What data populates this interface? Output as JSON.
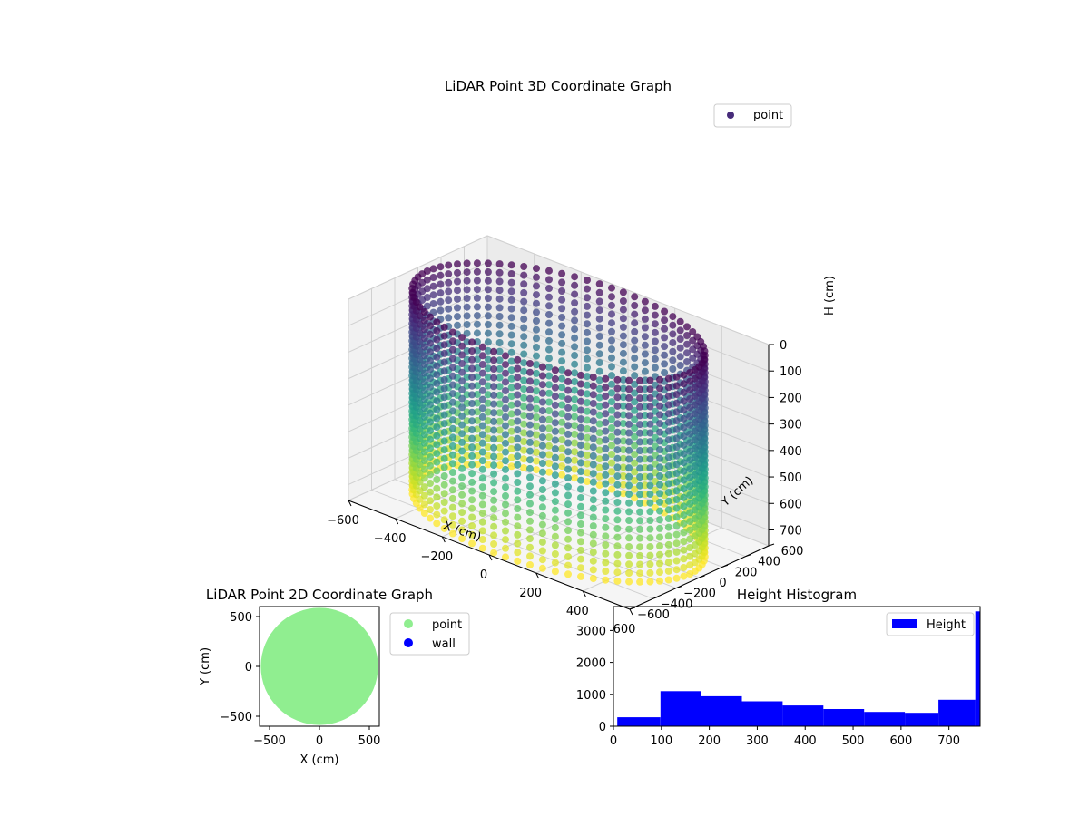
{
  "chart_data": [
    {
      "type": "scatter3d",
      "title": "LiDAR Point 3D Coordinate Graph",
      "xlabel": "X (cm)",
      "ylabel": "Y (cm)",
      "zlabel": "H (cm)",
      "xlim": [
        -600,
        600
      ],
      "ylim": [
        -600,
        600
      ],
      "zlim": [
        0,
        760
      ],
      "z_inverted": true,
      "x_ticks": [
        "−600",
        "−400",
        "−200",
        "0",
        "200",
        "400",
        "600"
      ],
      "y_ticks": [
        "−600",
        "−400",
        "−200",
        "0",
        "200",
        "400",
        "600"
      ],
      "z_ticks": [
        "0",
        "100",
        "200",
        "300",
        "400",
        "500",
        "600",
        "700"
      ],
      "colormap": "viridis",
      "grid": true,
      "legend": {
        "placement": "top-right",
        "entries": [
          {
            "name": "point",
            "color": "#472c7a"
          }
        ]
      },
      "series": [
        {
          "name": "point",
          "shape": "cylinder",
          "radius": 560,
          "height_range": [
            0,
            760
          ],
          "angular_columns": 72,
          "height_levels": 24
        }
      ]
    },
    {
      "type": "scatter",
      "title": "LiDAR Point 2D Coordinate Graph",
      "xlabel": "X (cm)",
      "ylabel": "Y (cm)",
      "xlim": [
        -600,
        600
      ],
      "ylim": [
        -600,
        600
      ],
      "x_ticks": [
        -500,
        0,
        500
      ],
      "y_ticks": [
        -500,
        0,
        500
      ],
      "legend": {
        "placement": "outside-right",
        "entries": [
          {
            "name": "point",
            "color": "#90ee90"
          },
          {
            "name": "wall",
            "color": "#0000ff"
          }
        ]
      },
      "series": [
        {
          "name": "point",
          "color": "#90ee90",
          "shape": "filled-disk",
          "radius": 560
        },
        {
          "name": "wall",
          "color": "#0000ff",
          "points": []
        }
      ]
    },
    {
      "type": "histogram",
      "title": "Height Histogram",
      "xlim": [
        0,
        765
      ],
      "ylim": [
        0,
        3750
      ],
      "x_ticks": [
        0,
        100,
        200,
        300,
        400,
        500,
        600,
        700
      ],
      "y_ticks": [
        0,
        1000,
        2000,
        3000
      ],
      "legend": {
        "placement": "top-right",
        "entries": [
          {
            "name": "Height",
            "color": "#0000ff"
          }
        ]
      },
      "bar_color": "#0000ff",
      "bins": [
        {
          "start": 8,
          "end": 98,
          "count": 280
        },
        {
          "start": 98,
          "end": 183,
          "count": 1100
        },
        {
          "start": 183,
          "end": 268,
          "count": 940
        },
        {
          "start": 268,
          "end": 353,
          "count": 780
        },
        {
          "start": 353,
          "end": 438,
          "count": 650
        },
        {
          "start": 438,
          "end": 523,
          "count": 540
        },
        {
          "start": 523,
          "end": 608,
          "count": 450
        },
        {
          "start": 608,
          "end": 678,
          "count": 420
        },
        {
          "start": 678,
          "end": 755,
          "count": 830
        },
        {
          "start": 755,
          "end": 765,
          "count": 3600
        }
      ]
    }
  ]
}
